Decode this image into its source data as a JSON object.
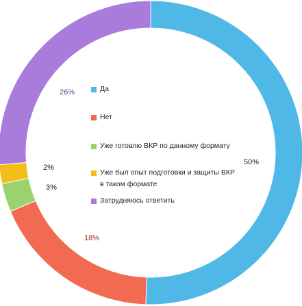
{
  "chart_data": {
    "type": "pie",
    "donut": true,
    "categories": [
      "Да",
      "Нет",
      "Уже готовлю ВКР по данному формату",
      "Уже был опыт подготовки и защиты ВКР в таком формате",
      "Затрудняюсь ответить"
    ],
    "values": [
      50,
      18,
      3,
      2,
      26
    ],
    "value_labels": [
      "50%",
      "18%",
      "3%",
      "2%",
      "26%"
    ],
    "colors": [
      "#4FB8E6",
      "#F36A52",
      "#9AD36E",
      "#F2BE17",
      "#A97CDB"
    ],
    "label_colors": [
      "#1f1f1f",
      "#8b1d12",
      "#1f1f1f",
      "#1f1f1f",
      "#6a3d9a"
    ],
    "legend_placement": "center"
  }
}
